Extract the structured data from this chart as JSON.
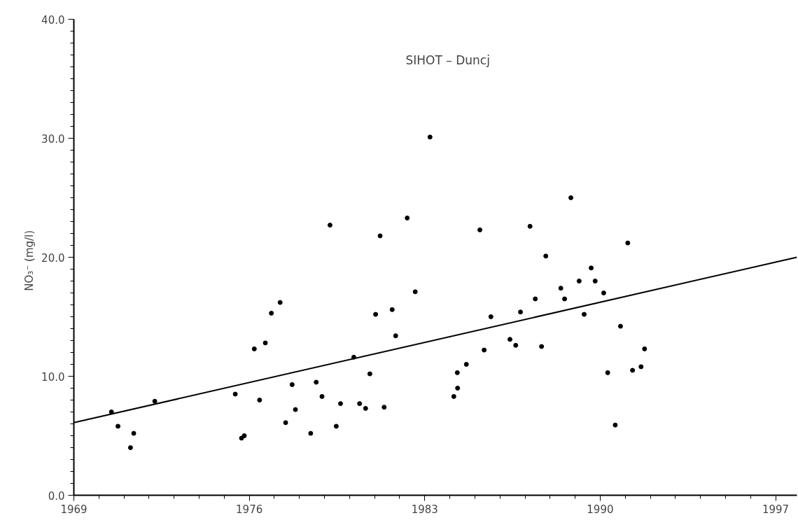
{
  "chart_data": {
    "type": "scatter",
    "ylabel": "NO₃⁻   (mg/l)",
    "annotations": [
      "SIHOT   –   Duncj"
    ],
    "xlim": [
      1969,
      1997.85
    ],
    "xticks": [
      1969,
      1976,
      1983,
      1990,
      1997
    ],
    "ylim": [
      0,
      40
    ],
    "yticks": [
      {
        "value": 0,
        "label": "0.0"
      },
      {
        "value": 10,
        "label": "10.0"
      },
      {
        "value": 20,
        "label": "20.0"
      },
      {
        "value": 30,
        "label": "30.0"
      },
      {
        "value": 40,
        "label": "40.0"
      }
    ],
    "grid": false,
    "series": [
      {
        "color": "#000000",
        "marker": "circle",
        "x": [
          1970.5,
          1970.76,
          1971.26,
          1971.39,
          1972.23,
          1975.44,
          1975.69,
          1975.8,
          1976.2,
          1976.41,
          1976.64,
          1976.88,
          1977.23,
          1977.45,
          1977.71,
          1977.84,
          1978.45,
          1978.67,
          1978.9,
          1979.22,
          1979.47,
          1979.64,
          1980.17,
          1980.4,
          1980.64,
          1980.81,
          1981.04,
          1981.22,
          1981.38,
          1981.7,
          1981.84,
          1982.3,
          1982.62,
          1983.21,
          1984.16,
          1984.3,
          1984.31,
          1984.66,
          1985.2,
          1985.37,
          1985.64,
          1986.4,
          1986.63,
          1986.82,
          1987.2,
          1987.41,
          1987.66,
          1987.83,
          1988.43,
          1988.58,
          1988.83,
          1989.16,
          1989.36,
          1989.64,
          1989.8,
          1990.14,
          1990.3,
          1990.6,
          1990.81,
          1991.1,
          1991.29,
          1991.63,
          1991.77
        ],
        "values": [
          7.0,
          5.8,
          4.0,
          5.2,
          7.9,
          8.5,
          4.8,
          5.0,
          12.3,
          8.0,
          12.8,
          15.3,
          16.2,
          6.1,
          9.3,
          7.2,
          5.2,
          9.5,
          8.3,
          22.7,
          5.8,
          7.7,
          11.6,
          7.7,
          7.3,
          10.2,
          15.2,
          21.8,
          7.4,
          15.6,
          13.4,
          23.3,
          17.1,
          30.1,
          8.3,
          10.3,
          9.0,
          11.0,
          22.3,
          12.2,
          15.0,
          13.1,
          12.6,
          15.4,
          22.6,
          16.5,
          12.5,
          20.1,
          17.4,
          16.5,
          25.0,
          18.0,
          15.2,
          19.1,
          18.0,
          17.0,
          10.3,
          5.9,
          14.2,
          21.2,
          10.5,
          10.8,
          12.3
        ]
      },
      {
        "type": "line",
        "color": "#000000",
        "marker": "none",
        "x": [
          1969,
          1997.85
        ],
        "values": [
          6.1,
          20.0
        ]
      }
    ]
  }
}
